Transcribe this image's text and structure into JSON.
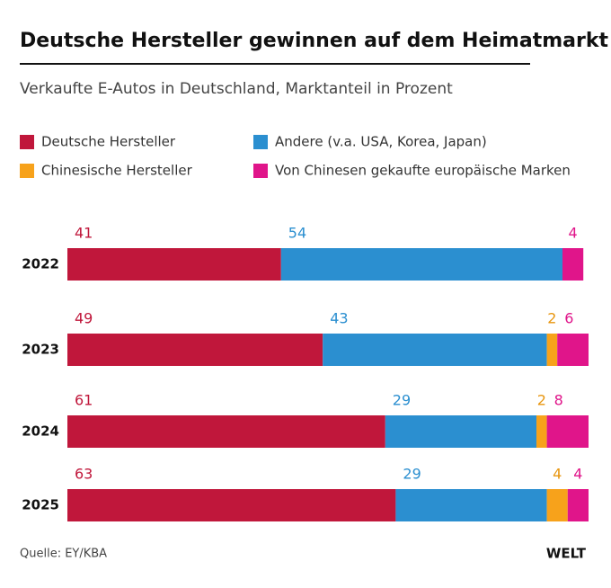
{
  "chart_data": {
    "type": "stacked-bar-horizontal",
    "title": "Deutsche Hersteller gewinnen auf dem Heimatmarkt",
    "subtitle": "Verkaufte E-Autos in Deutschland, Marktanteil in Prozent",
    "categories": [
      "2022",
      "2023",
      "2024",
      "2025"
    ],
    "series": [
      {
        "name": "Deutsche Hersteller",
        "color": "#c0173b",
        "values": [
          41,
          49,
          61,
          63
        ]
      },
      {
        "name": "Andere (v.a. USA, Korea, Japan)",
        "color": "#2b8fd0",
        "values": [
          54,
          43,
          29,
          29
        ]
      },
      {
        "name": "Chinesische Hersteller",
        "color": "#f7a21b",
        "values": [
          null,
          2,
          2,
          4
        ]
      },
      {
        "name": "Von Chinesen gekaufte europäische Marken",
        "color": "#e0158a",
        "values": [
          4,
          6,
          8,
          4
        ]
      }
    ],
    "source": "Quelle: EY/KBA",
    "logo": "WELT"
  }
}
